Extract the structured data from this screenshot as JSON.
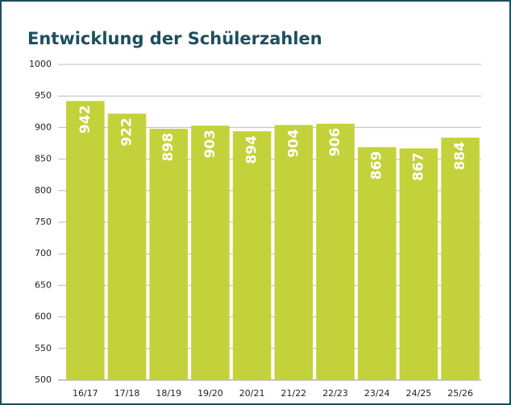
{
  "chart_data": {
    "type": "bar",
    "title": "Entwicklung der Schülerzahlen",
    "categories": [
      "16/17",
      "17/18",
      "18/19",
      "19/20",
      "20/21",
      "21/22",
      "22/23",
      "23/24",
      "24/25",
      "25/26"
    ],
    "values": [
      942,
      922,
      898,
      903,
      894,
      904,
      906,
      869,
      867,
      884
    ],
    "color": "#c3d23a",
    "ylim": [
      500,
      1000
    ],
    "yticks": [
      500,
      550,
      600,
      650,
      700,
      750,
      800,
      850,
      900,
      950,
      1000
    ],
    "grid": true
  }
}
